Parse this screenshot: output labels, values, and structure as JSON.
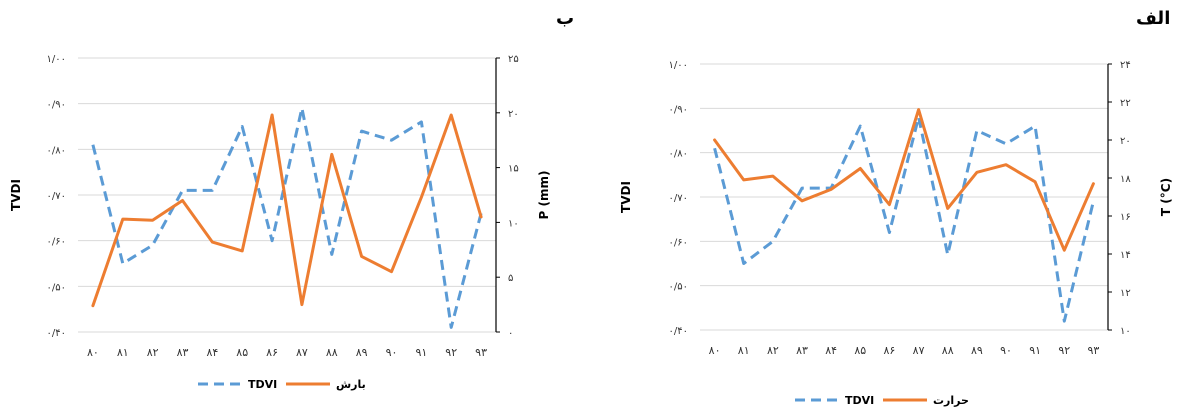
{
  "panels": [
    {
      "label": "ب"
    },
    {
      "label": "الف"
    }
  ],
  "chart_data": [
    {
      "type": "line",
      "panel": "ب",
      "categories": [
        "۸۰",
        "۸۱",
        "۸۲",
        "۸۳",
        "۸۴",
        "۸۵",
        "۸۶",
        "۸۷",
        "۸۸",
        "۸۹",
        "۹۰",
        "۹۱",
        "۹۲",
        "۹۳"
      ],
      "left_axis": {
        "label": "TVDI",
        "ylim": [
          0.4,
          1.0
        ],
        "ticks": [
          "۰/۴۰",
          "۰/۵۰",
          "۰/۶۰",
          "۰/۷۰",
          "۰/۸۰",
          "۰/۹۰",
          "۱/۰۰"
        ]
      },
      "right_axis": {
        "label": "P (mm)",
        "ylim": [
          0,
          25
        ],
        "ticks": [
          "۰",
          "۵",
          "۱۰",
          "۱۵",
          "۲۰",
          "۲۵"
        ]
      },
      "series": [
        {
          "name": "TDVI",
          "axis": "left",
          "color": "#5B9BD5",
          "dashed": true,
          "values": [
            0.81,
            0.55,
            0.59,
            0.71,
            0.71,
            0.85,
            0.6,
            0.89,
            0.57,
            0.84,
            0.82,
            0.86,
            0.41,
            0.66
          ]
        },
        {
          "name": "بارش",
          "axis": "right",
          "color": "#ED7D31",
          "dashed": false,
          "values": [
            2.4,
            10.3,
            10.2,
            12.0,
            8.2,
            7.4,
            19.8,
            2.5,
            16.2,
            6.9,
            5.5,
            12.3,
            19.8,
            10.5
          ]
        }
      ],
      "legend": "bottom"
    },
    {
      "type": "line",
      "panel": "الف",
      "categories": [
        "۸۰",
        "۸۱",
        "۸۲",
        "۸۳",
        "۸۴",
        "۸۵",
        "۸۶",
        "۸۷",
        "۸۸",
        "۸۹",
        "۹۰",
        "۹۱",
        "۹۲",
        "۹۳"
      ],
      "left_axis": {
        "label": "TVDI",
        "ylim": [
          0.4,
          1.0
        ],
        "ticks": [
          "۰/۴۰",
          "۰/۵۰",
          "۰/۶۰",
          "۰/۷۰",
          "۰/۸۰",
          "۰/۹۰",
          "۱/۰۰"
        ]
      },
      "right_axis": {
        "label": "T (°C)",
        "ylim": [
          10,
          24
        ],
        "ticks": [
          "۱۰",
          "۱۲",
          "۱۴",
          "۱۶",
          "۱۸",
          "۲۰",
          "۲۲",
          "۲۴"
        ]
      },
      "series": [
        {
          "name": "TDVI",
          "axis": "left",
          "color": "#5B9BD5",
          "dashed": true,
          "values": [
            0.81,
            0.55,
            0.6,
            0.72,
            0.72,
            0.86,
            0.62,
            0.88,
            0.57,
            0.85,
            0.82,
            0.86,
            0.42,
            0.69
          ]
        },
        {
          "name": "حرارت",
          "axis": "right",
          "color": "#ED7D31",
          "dashed": false,
          "values": [
            20.0,
            17.9,
            18.1,
            16.8,
            17.4,
            18.5,
            16.6,
            21.6,
            16.4,
            18.3,
            18.7,
            17.8,
            14.2,
            17.7
          ]
        }
      ],
      "legend": "bottom"
    }
  ]
}
